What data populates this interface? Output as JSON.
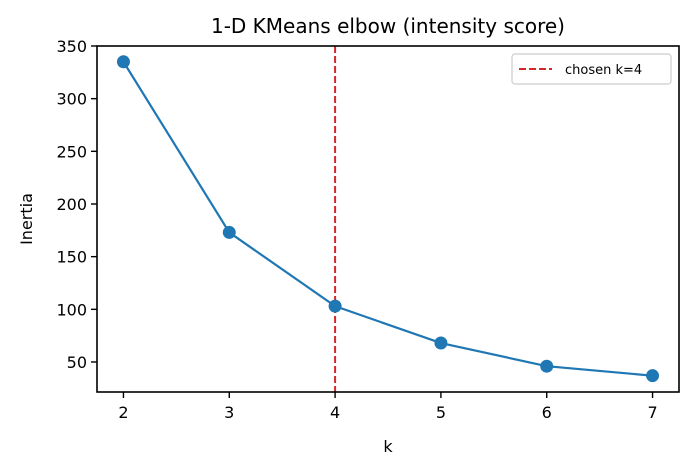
{
  "chart_data": {
    "type": "line",
    "title": "1-D KMeans elbow (intensity score)",
    "xlabel": "k",
    "ylabel": "Inertia",
    "x": [
      2,
      3,
      4,
      5,
      6,
      7
    ],
    "series": [
      {
        "name": "inertia",
        "values": [
          335,
          173,
          103,
          68,
          46,
          37
        ],
        "color": "#1f77b4",
        "marker": "circle"
      }
    ],
    "xticks": [
      2,
      3,
      4,
      5,
      6,
      7
    ],
    "yticks": [
      50,
      100,
      150,
      200,
      250,
      300,
      350
    ],
    "xlim": [
      1.75,
      7.25
    ],
    "ylim": [
      21.5,
      350
    ],
    "grid": false,
    "annotations": [
      {
        "type": "vline",
        "x": 4,
        "style": "dashed",
        "color": "#d62728",
        "label": "chosen k=4"
      }
    ],
    "legend": {
      "position": "upper right",
      "entries": [
        "chosen k=4"
      ]
    }
  }
}
